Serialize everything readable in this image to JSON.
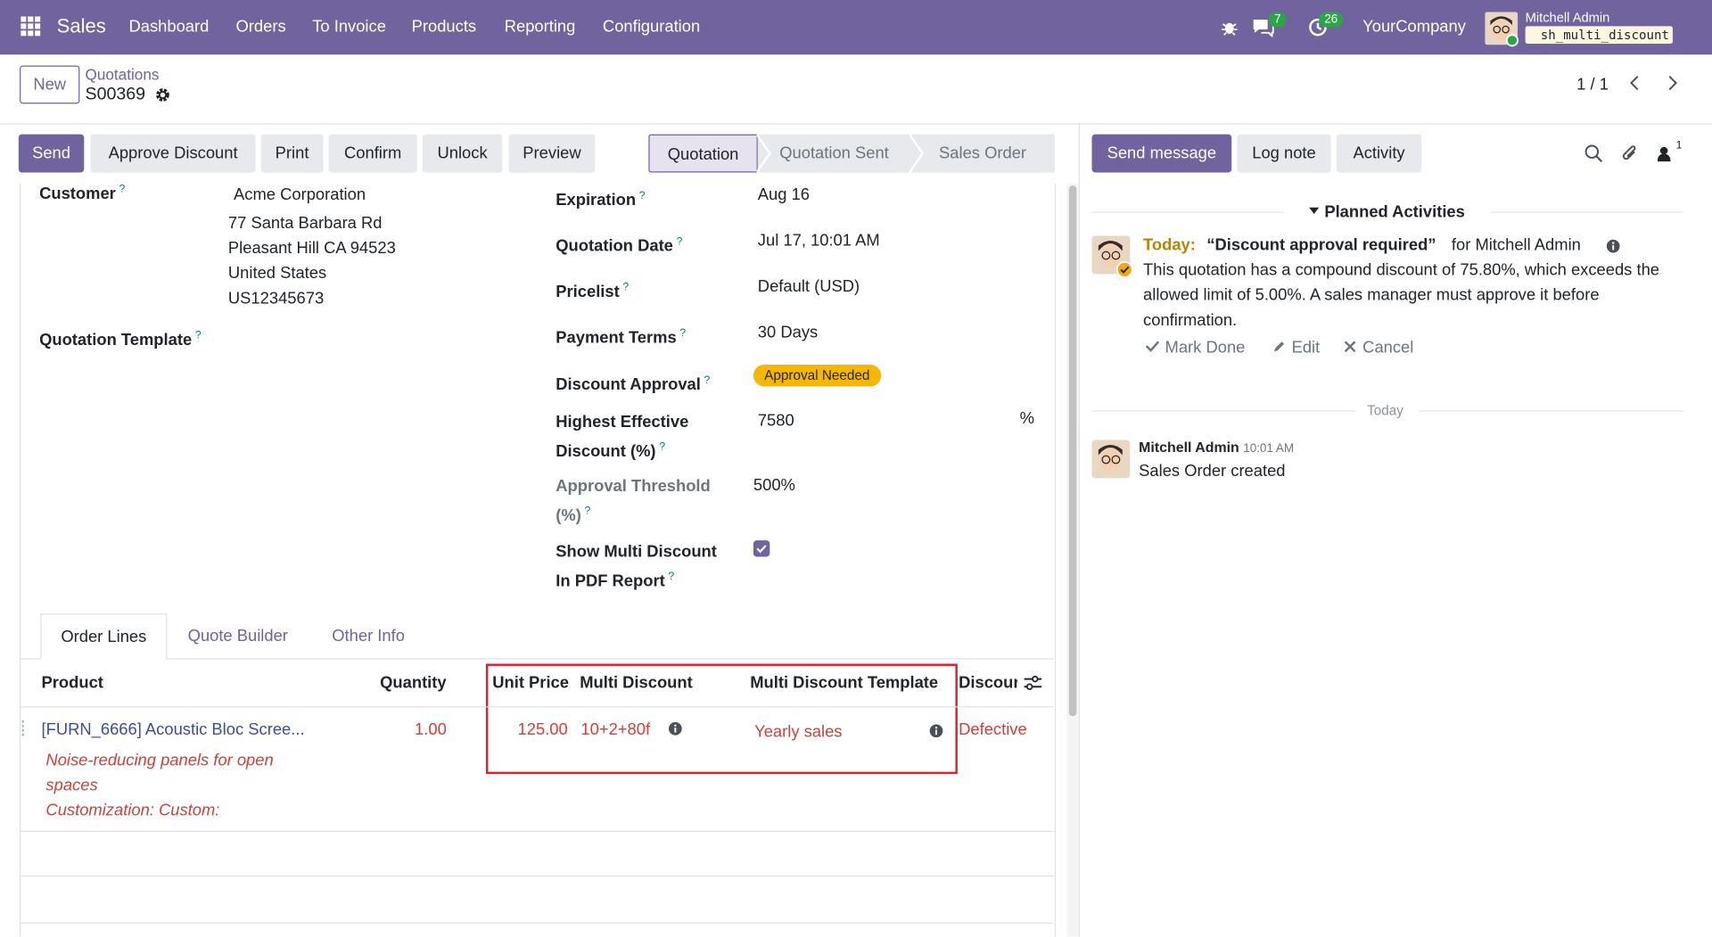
{
  "navbar": {
    "app": "Sales",
    "menu": [
      "Dashboard",
      "Orders",
      "To Invoice",
      "Products",
      "Reporting",
      "Configuration"
    ],
    "messages_badge": "7",
    "activities_badge": "26",
    "company": "YourCompany",
    "user": "Mitchell Admin",
    "database": "sh_multi_discount"
  },
  "breadcrumb": {
    "new_button": "New",
    "parent": "Quotations",
    "current": "S00369"
  },
  "pager": "1 / 1",
  "actions": [
    "Send",
    "Approve Discount",
    "Print",
    "Confirm",
    "Unlock",
    "Preview"
  ],
  "statusbar": {
    "stages": [
      "Quotation",
      "Quotation Sent",
      "Sales Order"
    ],
    "active": 0
  },
  "form": {
    "help": "?",
    "customer": {
      "label": "Customer",
      "name": "Acme Corporation",
      "address": [
        "77 Santa Barbara Rd",
        "Pleasant Hill CA 94523",
        "United States",
        "US12345673"
      ]
    },
    "quotation_template": {
      "label": "Quotation Template"
    },
    "fields": [
      {
        "label": "Expiration",
        "value": "Aug 16"
      },
      {
        "label": "Quotation Date",
        "value": "Jul 17, 10:01 AM"
      },
      {
        "label": "Pricelist",
        "value": "Default (USD)"
      },
      {
        "label": "Payment Terms",
        "value": "30 Days"
      },
      {
        "label": "Discount Approval",
        "badge": "Approval Needed"
      },
      {
        "label": "Highest Effective Discount (%)",
        "value": "7580",
        "suffix": "%"
      },
      {
        "label": "Approval Threshold (%)",
        "value": "500%",
        "muted": true
      },
      {
        "label": "Show Multi Discount In PDF Report",
        "checkbox": true
      }
    ]
  },
  "tabs": {
    "items": [
      "Order Lines",
      "Quote Builder",
      "Other Info"
    ],
    "active": 0
  },
  "table": {
    "headers": [
      "Product",
      "Quantity",
      "Unit Price",
      "Multi Discount",
      "Multi Discount Template",
      "Discount"
    ],
    "rows": [
      {
        "product": "[FURN_6666] Acoustic Bloc Scree...",
        "description": [
          "Noise-reducing panels for open spaces",
          "Customization: Custom:"
        ],
        "quantity": "1.00",
        "unit_price": "125.00",
        "multi_discount": "10+2+80f",
        "template": "Yearly sales",
        "discount": "Defective"
      }
    ]
  },
  "chatter": {
    "buttons": [
      "Send message",
      "Log note",
      "Activity"
    ],
    "followers": "1",
    "planned_title": "Planned Activities",
    "activity": {
      "when": "Today:",
      "summary": "“Discount approval required”",
      "assignee": "for Mitchell Admin",
      "note": "This quotation has a compound discount of 75.80%, which exceeds the allowed limit of 5.00%. A sales manager must approve it before confirmation.",
      "actions": [
        "Mark Done",
        "Edit",
        "Cancel"
      ]
    },
    "separator": "Today",
    "message": {
      "author": "Mitchell Admin",
      "time": "10:01 AM",
      "body": "Sales Order created"
    }
  }
}
